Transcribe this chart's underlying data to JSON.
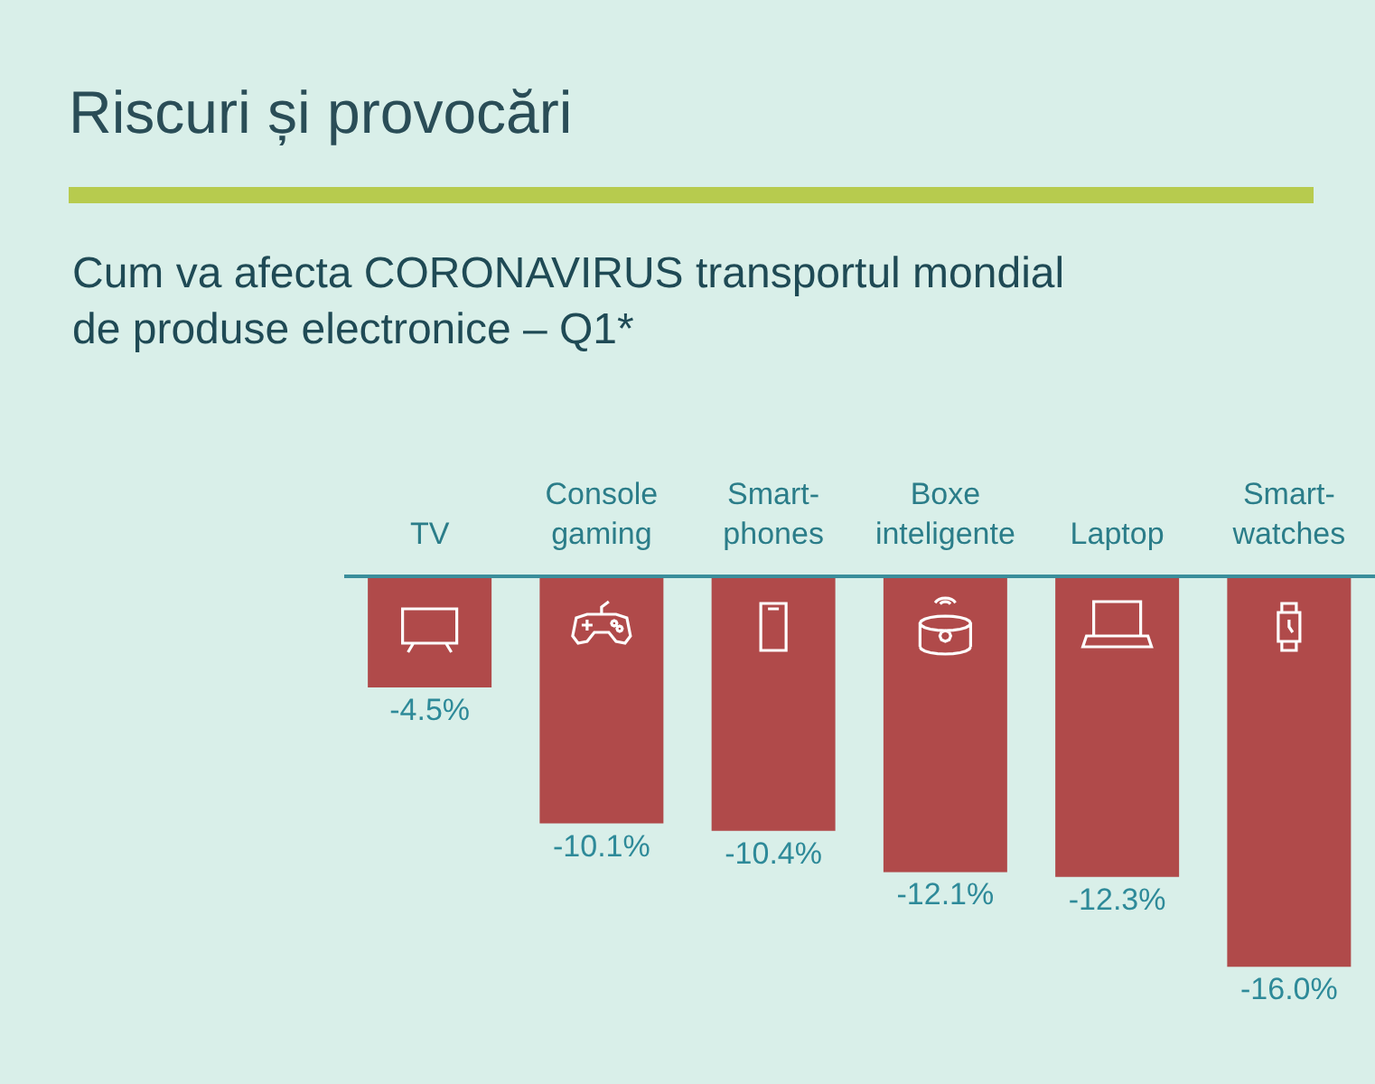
{
  "chart_data": {
    "type": "bar",
    "title": "Riscuri și provocări",
    "subtitle": "Cum va afecta CORONAVIRUS transportul mondial\nde produse electronice – Q1*",
    "categories": [
      "TV",
      "Console\ngaming",
      "Smart-\nphones",
      "Boxe\ninteligente",
      "Laptop",
      "Smart-\nwatches"
    ],
    "values": [
      -4.5,
      -10.1,
      -10.4,
      -12.1,
      -12.3,
      -16.0
    ],
    "value_labels": [
      "-4.5%",
      "-10.1%",
      "-10.4%",
      "-12.1%",
      "-12.3%",
      "-16.0%"
    ],
    "color": "#b04a4a",
    "tick_labels": "x"
  }
}
